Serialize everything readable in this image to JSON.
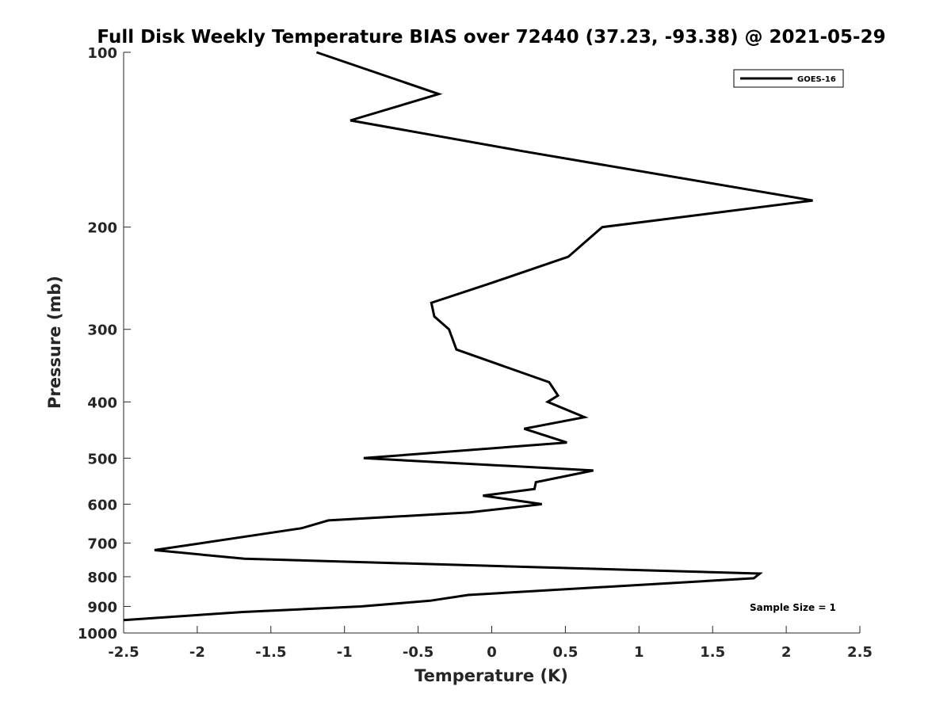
{
  "chart_data": {
    "type": "line",
    "title": "Full Disk Weekly Temperature BIAS over 72440 (37.23, -93.38) @ 2021-05-29",
    "xlabel": "Temperature (K)",
    "ylabel": "Pressure (mb)",
    "xlim": [
      -2.5,
      2.5
    ],
    "ylim": [
      100,
      1000
    ],
    "y_scale": "log",
    "y_reversed": true,
    "grid": false,
    "legend_position": "top-right",
    "x_ticks": [
      "-2.5",
      "-2",
      "-1.5",
      "-1",
      "-0.5",
      "0",
      "0.5",
      "1",
      "1.5",
      "2",
      "2.5"
    ],
    "y_ticks": [
      "100",
      "200",
      "300",
      "400",
      "500",
      "600",
      "700",
      "800",
      "900",
      "1000"
    ],
    "annotation": "Sample Size = 1",
    "series": [
      {
        "name": "GOES-16",
        "color": "#000000",
        "points": [
          {
            "x": -1.19,
            "y": 100
          },
          {
            "x": -0.36,
            "y": 118
          },
          {
            "x": -0.96,
            "y": 131
          },
          {
            "x": 0.21,
            "y": 148
          },
          {
            "x": 2.18,
            "y": 180
          },
          {
            "x": 0.75,
            "y": 200
          },
          {
            "x": 0.52,
            "y": 225
          },
          {
            "x": -0.01,
            "y": 250
          },
          {
            "x": -0.41,
            "y": 270
          },
          {
            "x": -0.39,
            "y": 285
          },
          {
            "x": -0.29,
            "y": 300
          },
          {
            "x": -0.24,
            "y": 325
          },
          {
            "x": 0.39,
            "y": 370
          },
          {
            "x": 0.45,
            "y": 390
          },
          {
            "x": 0.38,
            "y": 400
          },
          {
            "x": 0.63,
            "y": 425
          },
          {
            "x": 0.22,
            "y": 445
          },
          {
            "x": 0.51,
            "y": 470
          },
          {
            "x": -0.87,
            "y": 500
          },
          {
            "x": 0.69,
            "y": 525
          },
          {
            "x": 0.3,
            "y": 550
          },
          {
            "x": 0.29,
            "y": 565
          },
          {
            "x": -0.06,
            "y": 580
          },
          {
            "x": 0.34,
            "y": 600
          },
          {
            "x": -0.15,
            "y": 620
          },
          {
            "x": -1.11,
            "y": 640
          },
          {
            "x": -1.29,
            "y": 660
          },
          {
            "x": -2.29,
            "y": 720
          },
          {
            "x": -1.68,
            "y": 745
          },
          {
            "x": 1.82,
            "y": 790
          },
          {
            "x": 1.78,
            "y": 805
          },
          {
            "x": -0.16,
            "y": 860
          },
          {
            "x": -0.42,
            "y": 880
          },
          {
            "x": -0.89,
            "y": 900
          },
          {
            "x": -1.69,
            "y": 920
          },
          {
            "x": -2.5,
            "y": 950
          }
        ]
      }
    ]
  }
}
